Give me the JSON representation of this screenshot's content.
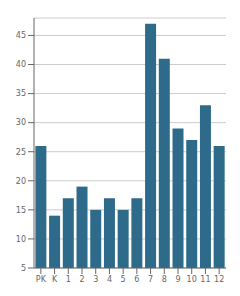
{
  "chart_data": {
    "type": "bar",
    "categories": [
      "PK",
      "K",
      "1",
      "2",
      "3",
      "4",
      "5",
      "6",
      "7",
      "8",
      "9",
      "10",
      "11",
      "12"
    ],
    "values": [
      26,
      14,
      17,
      19,
      15,
      17,
      15,
      17,
      47,
      41,
      29,
      27,
      33,
      26
    ],
    "color": "#2e6b8a",
    "ylim": [
      5,
      48
    ],
    "yticks": [
      5,
      10,
      15,
      20,
      25,
      30,
      35,
      40,
      45
    ],
    "grid": true
  }
}
